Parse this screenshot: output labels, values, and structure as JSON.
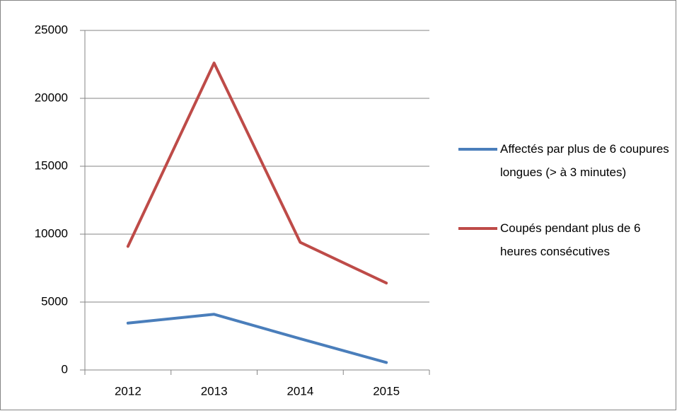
{
  "chart_data": {
    "type": "line",
    "categories": [
      "2012",
      "2013",
      "2014",
      "2015"
    ],
    "series": [
      {
        "name": "Affectés par plus de 6 coupures longues (> à 3 minutes)",
        "color": "#4a7ebb",
        "values": [
          3450,
          4100,
          2300,
          550
        ]
      },
      {
        "name": "Coupés pendant plus de 6 heures consécutives",
        "color": "#be4b48",
        "values": [
          9100,
          22600,
          9400,
          6400
        ]
      }
    ],
    "ylim": [
      0,
      25000
    ],
    "yticks": [
      0,
      5000,
      10000,
      15000,
      20000,
      25000
    ],
    "grid": true,
    "legend": "right"
  }
}
